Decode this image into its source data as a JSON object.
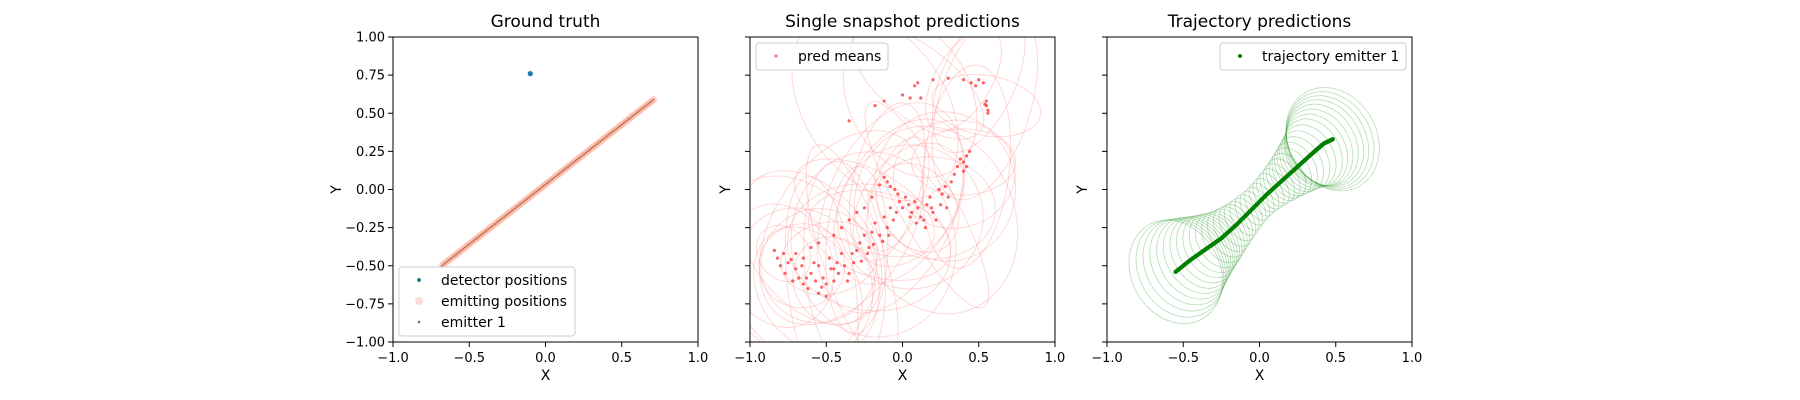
{
  "chart_data": [
    {
      "type": "scatter",
      "title": "Ground truth",
      "xlabel": "X",
      "ylabel": "Y",
      "xlim": [
        -1.0,
        1.0
      ],
      "ylim": [
        -1.0,
        1.0
      ],
      "xticks": [
        "−1.0",
        "−0.5",
        "0.0",
        "0.5",
        "1.0"
      ],
      "yticks": [
        "1.00",
        "0.75",
        "0.50",
        "0.25",
        "0.00",
        "−0.25",
        "−0.50",
        "−0.75",
        "−1.00"
      ],
      "legend_position": "lower-left",
      "legend": [
        "detector positions",
        "emitting positions",
        "emitter 1"
      ],
      "series": [
        {
          "name": "detector positions",
          "color": "#1f77b4",
          "points": [
            [
              -0.1,
              0.76
            ]
          ]
        },
        {
          "name": "emitting positions",
          "color": "#ff9b85",
          "line_from": [
            -0.68,
            -0.5
          ],
          "line_to": [
            0.71,
            0.59
          ],
          "count": 120
        },
        {
          "name": "emitter 1",
          "color": "#8a5a2b",
          "line_from": [
            -0.68,
            -0.5
          ],
          "line_to": [
            0.71,
            0.59
          ],
          "count": 120
        }
      ]
    },
    {
      "type": "scatter",
      "title": "Single snapshot predictions",
      "xlabel": "X",
      "ylabel": "Y",
      "xlim": [
        -1.0,
        1.0
      ],
      "ylim": [
        -1.0,
        1.0
      ],
      "xticks": [
        "−1.0",
        "−0.5",
        "0.0",
        "0.5",
        "1.0"
      ],
      "legend_position": "upper-left",
      "legend": [
        "pred means"
      ],
      "series": [
        {
          "name": "pred means",
          "color": "#ff2020",
          "points": [
            [
              -0.78,
              -0.42
            ],
            [
              -0.82,
              -0.45
            ],
            [
              -0.75,
              -0.48
            ],
            [
              -0.7,
              -0.52
            ],
            [
              -0.68,
              -0.58
            ],
            [
              -0.72,
              -0.6
            ],
            [
              -0.65,
              -0.62
            ],
            [
              -0.6,
              -0.55
            ],
            [
              -0.58,
              -0.48
            ],
            [
              -0.55,
              -0.5
            ],
            [
              -0.52,
              -0.58
            ],
            [
              -0.5,
              -0.62
            ],
            [
              -0.48,
              -0.45
            ],
            [
              -0.45,
              -0.52
            ],
            [
              -0.4,
              -0.42
            ],
            [
              -0.38,
              -0.5
            ],
            [
              -0.35,
              -0.55
            ],
            [
              -0.32,
              -0.48
            ],
            [
              -0.3,
              -0.4
            ],
            [
              -0.28,
              -0.35
            ],
            [
              -0.25,
              -0.3
            ],
            [
              -0.22,
              -0.38
            ],
            [
              -0.2,
              -0.28
            ],
            [
              -0.18,
              -0.22
            ],
            [
              -0.15,
              -0.3
            ],
            [
              -0.12,
              -0.18
            ],
            [
              -0.1,
              -0.25
            ],
            [
              -0.08,
              -0.12
            ],
            [
              -0.06,
              -0.2
            ],
            [
              -0.04,
              -0.15
            ],
            [
              -0.02,
              -0.08
            ],
            [
              0.0,
              -0.12
            ],
            [
              0.02,
              -0.05
            ],
            [
              0.04,
              -0.1
            ],
            [
              0.06,
              -0.15
            ],
            [
              0.08,
              -0.08
            ],
            [
              0.1,
              -0.12
            ],
            [
              0.12,
              -0.18
            ],
            [
              0.14,
              -0.2
            ],
            [
              0.16,
              -0.1
            ],
            [
              0.18,
              -0.05
            ],
            [
              0.2,
              -0.15
            ],
            [
              0.22,
              -0.2
            ],
            [
              0.24,
              0.0
            ],
            [
              0.26,
              -0.03
            ],
            [
              0.28,
              0.02
            ],
            [
              0.3,
              -0.05
            ],
            [
              0.32,
              0.05
            ],
            [
              0.34,
              0.1
            ],
            [
              0.36,
              0.15
            ],
            [
              0.38,
              0.2
            ],
            [
              0.4,
              0.18
            ],
            [
              0.42,
              0.22
            ],
            [
              0.44,
              0.25
            ],
            [
              0.42,
              0.15
            ],
            [
              0.4,
              0.12
            ],
            [
              -0.12,
              0.08
            ],
            [
              -0.1,
              0.05
            ],
            [
              -0.08,
              0.02
            ],
            [
              -0.05,
              0.0
            ],
            [
              -0.03,
              -0.03
            ],
            [
              -0.15,
              0.03
            ],
            [
              -0.2,
              -0.05
            ],
            [
              -0.25,
              -0.12
            ],
            [
              -0.3,
              -0.15
            ],
            [
              -0.35,
              -0.2
            ],
            [
              -0.4,
              -0.25
            ],
            [
              -0.45,
              -0.3
            ],
            [
              -0.55,
              -0.35
            ],
            [
              -0.6,
              -0.38
            ],
            [
              -0.65,
              -0.45
            ],
            [
              -0.7,
              -0.42
            ],
            [
              -0.62,
              -0.65
            ],
            [
              -0.55,
              -0.68
            ],
            [
              -0.5,
              -0.7
            ],
            [
              -0.45,
              -0.6
            ],
            [
              -0.42,
              -0.55
            ],
            [
              -0.36,
              -0.6
            ],
            [
              -0.33,
              -0.42
            ],
            [
              -0.27,
              -0.47
            ],
            [
              -0.23,
              -0.42
            ],
            [
              -0.19,
              -0.36
            ],
            [
              -0.13,
              -0.34
            ],
            [
              -0.09,
              -0.3
            ],
            [
              0.05,
              -0.18
            ],
            [
              0.09,
              -0.22
            ],
            [
              0.15,
              -0.25
            ],
            [
              0.19,
              -0.12
            ],
            [
              0.25,
              -0.1
            ],
            [
              0.29,
              -0.12
            ],
            [
              0.55,
              0.55
            ],
            [
              0.56,
              0.52
            ],
            [
              0.55,
              0.58
            ],
            [
              0.54,
              0.56
            ],
            [
              0.56,
              0.5
            ],
            [
              0.53,
              0.7
            ],
            [
              0.5,
              0.72
            ],
            [
              0.48,
              0.68
            ],
            [
              0.45,
              0.7
            ],
            [
              0.4,
              0.72
            ],
            [
              0.3,
              0.73
            ],
            [
              0.2,
              0.72
            ],
            [
              0.1,
              0.7
            ],
            [
              0.08,
              0.68
            ],
            [
              -0.35,
              0.45
            ],
            [
              -0.18,
              0.55
            ],
            [
              -0.12,
              0.58
            ],
            [
              0.0,
              0.62
            ],
            [
              0.05,
              0.6
            ],
            [
              0.12,
              0.6
            ],
            [
              -0.84,
              -0.4
            ],
            [
              -0.8,
              -0.5
            ],
            [
              -0.77,
              -0.55
            ],
            [
              -0.73,
              -0.46
            ],
            [
              -0.66,
              -0.5
            ],
            [
              -0.63,
              -0.58
            ],
            [
              -0.57,
              -0.6
            ],
            [
              -0.53,
              -0.64
            ],
            [
              -0.47,
              -0.52
            ],
            [
              -0.43,
              -0.48
            ]
          ]
        }
      ]
    },
    {
      "type": "scatter",
      "title": "Trajectory predictions",
      "xlabel": "X",
      "ylabel": "Y",
      "xlim": [
        -1.0,
        1.0
      ],
      "ylim": [
        -1.0,
        1.0
      ],
      "xticks": [
        "−1.0",
        "−0.5",
        "0.0",
        "0.5",
        "1.0"
      ],
      "legend_position": "upper-right",
      "legend": [
        "trajectory emitter 1"
      ],
      "series": [
        {
          "name": "trajectory emitter 1",
          "color": "#008000",
          "path": [
            [
              -0.55,
              -0.54
            ],
            [
              -0.45,
              -0.46
            ],
            [
              -0.35,
              -0.39
            ],
            [
              -0.25,
              -0.32
            ],
            [
              -0.15,
              -0.23
            ],
            [
              -0.05,
              -0.13
            ],
            [
              0.05,
              -0.03
            ],
            [
              0.15,
              0.06
            ],
            [
              0.25,
              0.15
            ],
            [
              0.35,
              0.24
            ],
            [
              0.42,
              0.3
            ],
            [
              0.48,
              0.33
            ]
          ],
          "count": 100
        }
      ]
    }
  ]
}
